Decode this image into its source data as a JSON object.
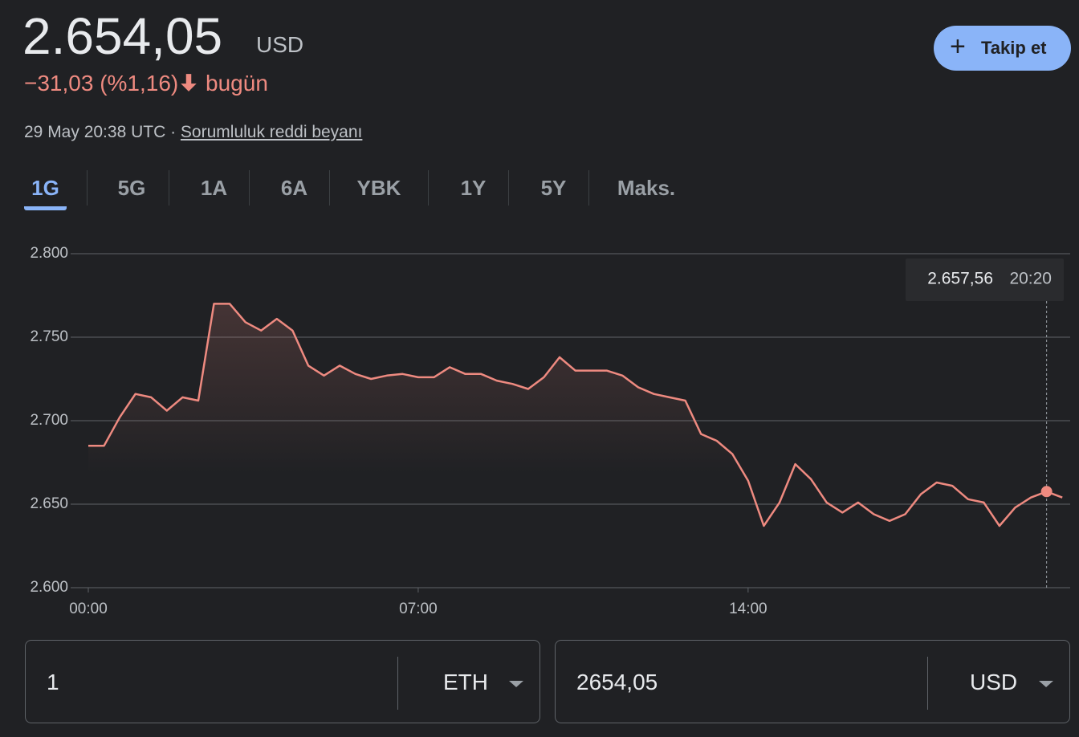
{
  "header": {
    "price": "2.654,05",
    "currency": "USD",
    "change": "−31,03 (%1,16)",
    "change_period": "bugün",
    "timestamp": "29 May 20:38 UTC ·",
    "disclaimer": "Sorumluluk reddi beyanı",
    "follow_button": "Takip et"
  },
  "tabs": [
    "1G",
    "5G",
    "1A",
    "6A",
    "YBK",
    "1Y",
    "5Y",
    "Maks."
  ],
  "chart_data": {
    "type": "line",
    "x": [
      "00:00",
      "00:20",
      "00:40",
      "01:00",
      "01:20",
      "01:40",
      "02:00",
      "02:20",
      "02:40",
      "03:00",
      "03:20",
      "03:40",
      "04:00",
      "04:20",
      "04:40",
      "05:00",
      "05:20",
      "05:40",
      "06:00",
      "06:20",
      "06:40",
      "07:00",
      "07:20",
      "07:40",
      "08:00",
      "08:20",
      "08:40",
      "09:00",
      "09:20",
      "09:40",
      "10:00",
      "10:20",
      "10:40",
      "11:00",
      "11:20",
      "11:40",
      "12:00",
      "12:20",
      "12:40",
      "13:00",
      "13:20",
      "13:40",
      "14:00",
      "14:20",
      "14:40",
      "15:00",
      "15:20",
      "15:40",
      "16:00",
      "16:20",
      "16:40",
      "17:00",
      "17:20",
      "17:40",
      "18:00",
      "18:20",
      "18:40",
      "19:00",
      "19:20",
      "19:40",
      "20:00",
      "20:20",
      "20:40"
    ],
    "series": [
      {
        "color": "#ee8a80",
        "values": [
          2685,
          2685,
          2702,
          2716,
          2714,
          2706,
          2714,
          2712,
          2770,
          2770,
          2759,
          2754,
          2761,
          2754,
          2733,
          2727,
          2733,
          2728,
          2725,
          2727,
          2728,
          2726,
          2726,
          2732,
          2728,
          2728,
          2724,
          2722,
          2719,
          2726,
          2738,
          2730,
          2730,
          2730,
          2727,
          2720,
          2716,
          2714,
          2712,
          2692,
          2688,
          2680,
          2664,
          2637,
          2651,
          2674,
          2665,
          2651,
          2645,
          2651,
          2644,
          2640,
          2644,
          2656,
          2663,
          2661,
          2653,
          2651,
          2637,
          2648,
          2654,
          2657.56,
          2654
        ]
      }
    ],
    "xlim": [
      "00:00",
      "20:50"
    ],
    "xticks": [
      "00:00",
      "07:00",
      "14:00"
    ],
    "ylim": [
      2600,
      2800
    ],
    "yticks": [
      {
        "value": 2600,
        "label": "2.600"
      },
      {
        "value": 2650,
        "label": "2.650"
      },
      {
        "value": 2700,
        "label": "2.700"
      },
      {
        "value": 2750,
        "label": "2.750"
      },
      {
        "value": 2800,
        "label": "2.800"
      }
    ],
    "grid": true,
    "tooltip": {
      "x": "20:20",
      "label": "2.657,56"
    }
  },
  "converter": {
    "from_amount": "1",
    "from_currency": "ETH",
    "to_amount": "2654,05",
    "to_currency": "USD"
  }
}
